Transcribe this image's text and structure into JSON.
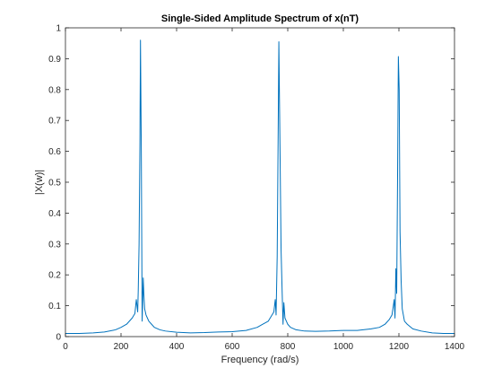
{
  "chart_data": {
    "type": "line",
    "title": "Single-Sided Amplitude Spectrum of x(nT)",
    "xlabel": "Frequency (rad/s)",
    "ylabel": "|X(w)|",
    "xlim": [
      0,
      1400
    ],
    "ylim": [
      0,
      1
    ],
    "grid": false,
    "legend": "none",
    "xticks": [
      0,
      200,
      400,
      600,
      800,
      1000,
      1200,
      1400
    ],
    "yticks": [
      0,
      0.1,
      0.2,
      0.3,
      0.4,
      0.5,
      0.6,
      0.7,
      0.8,
      0.9,
      1
    ],
    "xtick_labels": [
      "0",
      "200",
      "400",
      "600",
      "800",
      "1000",
      "1200",
      "1400"
    ],
    "ytick_labels": [
      "0",
      "0.1",
      "0.2",
      "0.3",
      "0.4",
      "0.5",
      "0.6",
      "0.7",
      "0.8",
      "0.9",
      "1"
    ],
    "line_color": "#0072BD",
    "series": [
      {
        "x": [
          0,
          50,
          100,
          140,
          180,
          200,
          220,
          240,
          250,
          255,
          260,
          262,
          265,
          268,
          270,
          273,
          276,
          280,
          282,
          285,
          290,
          295,
          300,
          310,
          320,
          340,
          360,
          400,
          450,
          500,
          550,
          600,
          650,
          690,
          710,
          730,
          740,
          750,
          755,
          758,
          762,
          765,
          768,
          772,
          776,
          780,
          783,
          786,
          790,
          795,
          800,
          810,
          830,
          860,
          900,
          950,
          1000,
          1050,
          1100,
          1130,
          1150,
          1165,
          1175,
          1180,
          1183,
          1186,
          1189,
          1192,
          1195,
          1198,
          1201,
          1204,
          1208,
          1212,
          1216,
          1220,
          1230,
          1250,
          1280,
          1320,
          1360,
          1400
        ],
        "y": [
          0.01,
          0.01,
          0.012,
          0.015,
          0.022,
          0.03,
          0.04,
          0.06,
          0.075,
          0.12,
          0.08,
          0.15,
          0.3,
          0.62,
          0.96,
          0.6,
          0.05,
          0.19,
          0.14,
          0.09,
          0.07,
          0.06,
          0.05,
          0.04,
          0.03,
          0.022,
          0.018,
          0.014,
          0.012,
          0.013,
          0.015,
          0.016,
          0.02,
          0.03,
          0.04,
          0.05,
          0.065,
          0.08,
          0.12,
          0.07,
          0.26,
          0.6,
          0.955,
          0.62,
          0.28,
          0.14,
          0.04,
          0.11,
          0.06,
          0.05,
          0.04,
          0.03,
          0.022,
          0.018,
          0.017,
          0.018,
          0.02,
          0.02,
          0.025,
          0.03,
          0.04,
          0.055,
          0.07,
          0.1,
          0.12,
          0.06,
          0.22,
          0.14,
          0.5,
          0.907,
          0.8,
          0.34,
          0.18,
          0.09,
          0.07,
          0.05,
          0.04,
          0.025,
          0.018,
          0.012,
          0.01,
          0.01
        ]
      }
    ]
  }
}
